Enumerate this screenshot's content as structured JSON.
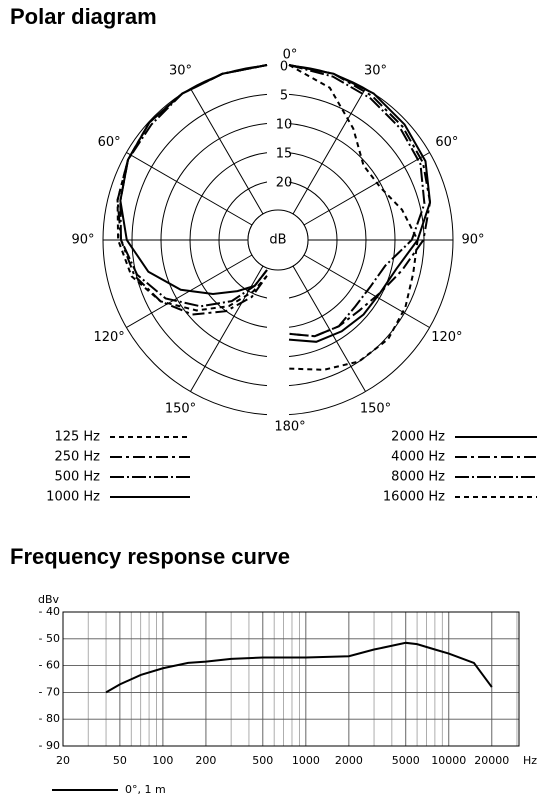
{
  "chart_data": [
    {
      "type": "polar",
      "title": "Polar diagram",
      "rlim": [
        0,
        25
      ],
      "rticks": [
        0,
        5,
        10,
        15,
        20,
        25
      ],
      "rlabel": "dB",
      "thetaticks": [
        {
          "value": 0,
          "label": "0°"
        },
        {
          "value": 30,
          "label": "30°"
        },
        {
          "value": 60,
          "label": "60°"
        },
        {
          "value": 90,
          "label": "90°"
        },
        {
          "value": 120,
          "label": "120°"
        },
        {
          "value": 150,
          "label": "150°"
        },
        {
          "value": 180,
          "label": "180°"
        }
      ],
      "series": [
        {
          "name": "125 Hz",
          "color": "#000000",
          "dash": "5,4",
          "theta": [
            0,
            -15,
            -30,
            -45,
            -60,
            -75,
            -90,
            -105,
            -120,
            -135,
            -150,
            -165,
            -180
          ],
          "values": [
            0,
            0.5,
            1,
            1.5,
            2.5,
            3.5,
            4.5,
            6,
            9,
            13,
            17,
            21,
            24
          ]
        },
        {
          "name": "250 Hz",
          "color": "#000000",
          "dash": "12,4,3,4",
          "theta": [
            0,
            -15,
            -30,
            -45,
            -60,
            -75,
            -90,
            -105,
            -120,
            -135,
            -150,
            -165,
            -180
          ],
          "values": [
            0,
            0.5,
            1,
            1.5,
            2.5,
            3.5,
            5,
            6.5,
            9,
            12,
            16,
            20,
            24
          ]
        },
        {
          "name": "500 Hz",
          "color": "#000000",
          "dash": "14,3,2,3",
          "theta": [
            0,
            -15,
            -30,
            -45,
            -60,
            -75,
            -90,
            -105,
            -120,
            -135,
            -150,
            -165,
            -180
          ],
          "values": [
            0,
            0.5,
            1,
            2,
            2.5,
            4,
            5,
            7,
            10,
            14,
            18,
            22,
            25
          ]
        },
        {
          "name": "1000 Hz",
          "color": "#000000",
          "dash": "none",
          "theta": [
            0,
            -15,
            -30,
            -45,
            -60,
            -75,
            -90,
            -105,
            -120,
            -135,
            -150,
            -165,
            -180
          ],
          "values": [
            0,
            0.5,
            1,
            1.5,
            2.5,
            4,
            6,
            9,
            13,
            17,
            20,
            22,
            25
          ]
        },
        {
          "name": "2000 Hz",
          "color": "#000000",
          "dash": "none",
          "theta": [
            0,
            15,
            30,
            45,
            60,
            75,
            90,
            105,
            120,
            135,
            150,
            165,
            180
          ],
          "values": [
            0,
            0.5,
            1,
            2,
            3,
            5,
            8,
            11,
            12,
            12,
            12,
            12,
            13
          ]
        },
        {
          "name": "4000 Hz",
          "color": "#000000",
          "dash": "12,4,3,4",
          "theta": [
            0,
            15,
            30,
            45,
            60,
            75,
            90,
            105,
            120,
            135,
            150,
            165,
            180
          ],
          "values": [
            0,
            0.5,
            1.5,
            2.5,
            3.5,
            5,
            7,
            10,
            12,
            13,
            13,
            13,
            14
          ]
        },
        {
          "name": "8000 Hz",
          "color": "#000000",
          "dash": "14,3,2,3",
          "theta": [
            0,
            15,
            30,
            45,
            60,
            75,
            90,
            105,
            120,
            135,
            150,
            165,
            180
          ],
          "values": [
            0,
            1,
            2,
            3,
            4,
            6,
            9,
            13,
            14,
            14,
            13,
            13,
            14
          ]
        },
        {
          "name": "16000 Hz",
          "color": "#000000",
          "dash": "5,4",
          "theta": [
            0,
            15,
            30,
            45,
            60,
            75,
            90,
            105,
            120,
            135,
            150,
            165,
            180
          ],
          "values": [
            0,
            3,
            8,
            12,
            12,
            10,
            8,
            8,
            7,
            6,
            6,
            7,
            8
          ]
        }
      ]
    },
    {
      "type": "line",
      "title": "Frequency response curve",
      "xlabel": "Hz",
      "ylabel": "dBv",
      "xscale": "log",
      "xlim": [
        20,
        31000
      ],
      "xticks": [
        20,
        50,
        100,
        200,
        500,
        1000,
        2000,
        5000,
        10000,
        20000
      ],
      "xminorticks": [
        30,
        40,
        60,
        70,
        80,
        90,
        300,
        400,
        600,
        700,
        800,
        900,
        3000,
        4000,
        6000,
        7000,
        8000,
        9000,
        30000
      ],
      "ylim": [
        -90,
        -40
      ],
      "yticks": [
        {
          "value": -40,
          "label": "- 40"
        },
        {
          "value": -50,
          "label": "- 50"
        },
        {
          "value": -60,
          "label": "- 60"
        },
        {
          "value": -70,
          "label": "- 70"
        },
        {
          "value": -80,
          "label": "- 80"
        },
        {
          "value": -90,
          "label": "- 90"
        }
      ],
      "grid": true,
      "series": [
        {
          "name": "0°, 1 m",
          "color": "#000000",
          "x": [
            40,
            50,
            70,
            100,
            150,
            200,
            300,
            500,
            1000,
            2000,
            3000,
            5000,
            6000,
            8000,
            10000,
            15000,
            20000
          ],
          "values": [
            -70,
            -67,
            -63.5,
            -61,
            -59,
            -58.5,
            -57.5,
            -57,
            -57,
            -56.5,
            -54,
            -51.5,
            -52,
            -54,
            -55.5,
            -59,
            -68
          ]
        }
      ]
    }
  ]
}
